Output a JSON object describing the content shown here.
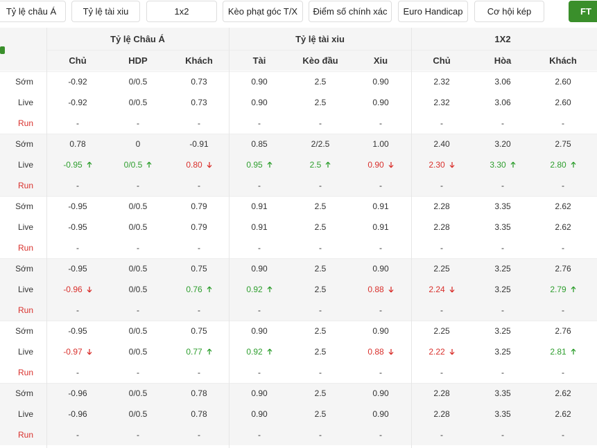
{
  "tabs": [
    "Tỷ lệ châu Á",
    "Tỷ lệ tài xiu",
    "1x2",
    "Kèo phạt góc T/X",
    "Điểm số chính xác",
    "Euro Handicap",
    "Cơ hội kép",
    "FT"
  ],
  "table": {
    "groups": [
      "Tỷ lệ Châu Á",
      "Tỷ lệ tài xiu",
      "1X2"
    ],
    "columns": [
      "Chủ",
      "HDP",
      "Khách",
      "Tài",
      "Kèo đầu",
      "Xiu",
      "Chủ",
      "Hòa",
      "Khách"
    ],
    "rows": [
      {
        "label": "Sớm",
        "cells": [
          "-0.92",
          "0/0.5",
          "0.73",
          "0.90",
          "2.5",
          "0.90",
          "2.32",
          "3.06",
          "2.60"
        ]
      },
      {
        "label": "Live",
        "cells": [
          "-0.92",
          "0/0.5",
          "0.73",
          "0.90",
          "2.5",
          "0.90",
          "2.32",
          "3.06",
          "2.60"
        ]
      },
      {
        "label": "Run",
        "cells": [
          "-",
          "-",
          "-",
          "-",
          "-",
          "-",
          "-",
          "-",
          "-"
        ]
      },
      {
        "label": "Sớm",
        "cells": [
          "0.78",
          "0",
          "-0.91",
          "0.85",
          "2/2.5",
          "1.00",
          "2.40",
          "3.20",
          "2.75"
        ]
      },
      {
        "label": "Live",
        "cells": [
          {
            "text": "-0.95",
            "trend": "up"
          },
          {
            "text": "0/0.5",
            "trend": "up"
          },
          {
            "text": "0.80",
            "trend": "down"
          },
          {
            "text": "0.95",
            "trend": "up"
          },
          {
            "text": "2.5",
            "trend": "up"
          },
          {
            "text": "0.90",
            "trend": "down"
          },
          {
            "text": "2.30",
            "trend": "down"
          },
          {
            "text": "3.30",
            "trend": "up"
          },
          {
            "text": "2.80",
            "trend": "up"
          }
        ]
      },
      {
        "label": "Run",
        "cells": [
          "-",
          "-",
          "-",
          "-",
          "-",
          "-",
          "-",
          "-",
          "-"
        ]
      },
      {
        "label": "Sớm",
        "cells": [
          "-0.95",
          "0/0.5",
          "0.79",
          "0.91",
          "2.5",
          "0.91",
          "2.28",
          "3.35",
          "2.62"
        ]
      },
      {
        "label": "Live",
        "cells": [
          "-0.95",
          "0/0.5",
          "0.79",
          "0.91",
          "2.5",
          "0.91",
          "2.28",
          "3.35",
          "2.62"
        ]
      },
      {
        "label": "Run",
        "cells": [
          "-",
          "-",
          "-",
          "-",
          "-",
          "-",
          "-",
          "-",
          "-"
        ]
      },
      {
        "label": "Sớm",
        "cells": [
          "-0.95",
          "0/0.5",
          "0.75",
          "0.90",
          "2.5",
          "0.90",
          "2.25",
          "3.25",
          "2.76"
        ]
      },
      {
        "label": "Live",
        "cells": [
          {
            "text": "-0.96",
            "trend": "down"
          },
          "0/0.5",
          {
            "text": "0.76",
            "trend": "up"
          },
          {
            "text": "0.92",
            "trend": "up"
          },
          "2.5",
          {
            "text": "0.88",
            "trend": "down"
          },
          {
            "text": "2.24",
            "trend": "down"
          },
          "3.25",
          {
            "text": "2.79",
            "trend": "up"
          }
        ]
      },
      {
        "label": "Run",
        "cells": [
          "-",
          "-",
          "-",
          "-",
          "-",
          "-",
          "-",
          "-",
          "-"
        ]
      },
      {
        "label": "Sớm",
        "cells": [
          "-0.95",
          "0/0.5",
          "0.75",
          "0.90",
          "2.5",
          "0.90",
          "2.25",
          "3.25",
          "2.76"
        ]
      },
      {
        "label": "Live",
        "cells": [
          {
            "text": "-0.97",
            "trend": "down"
          },
          "0/0.5",
          {
            "text": "0.77",
            "trend": "up"
          },
          {
            "text": "0.92",
            "trend": "up"
          },
          "2.5",
          {
            "text": "0.88",
            "trend": "down"
          },
          {
            "text": "2.22",
            "trend": "down"
          },
          "3.25",
          {
            "text": "2.81",
            "trend": "up"
          }
        ]
      },
      {
        "label": "Run",
        "cells": [
          "-",
          "-",
          "-",
          "-",
          "-",
          "-",
          "-",
          "-",
          "-"
        ]
      },
      {
        "label": "Sớm",
        "cells": [
          "-0.96",
          "0/0.5",
          "0.78",
          "0.90",
          "2.5",
          "0.90",
          "2.28",
          "3.35",
          "2.62"
        ]
      },
      {
        "label": "Live",
        "cells": [
          "-0.96",
          "0/0.5",
          "0.78",
          "0.90",
          "2.5",
          "0.90",
          "2.28",
          "3.35",
          "2.62"
        ]
      },
      {
        "label": "Run",
        "cells": [
          "-",
          "-",
          "-",
          "-",
          "-",
          "-",
          "-",
          "-",
          "-"
        ]
      }
    ]
  }
}
